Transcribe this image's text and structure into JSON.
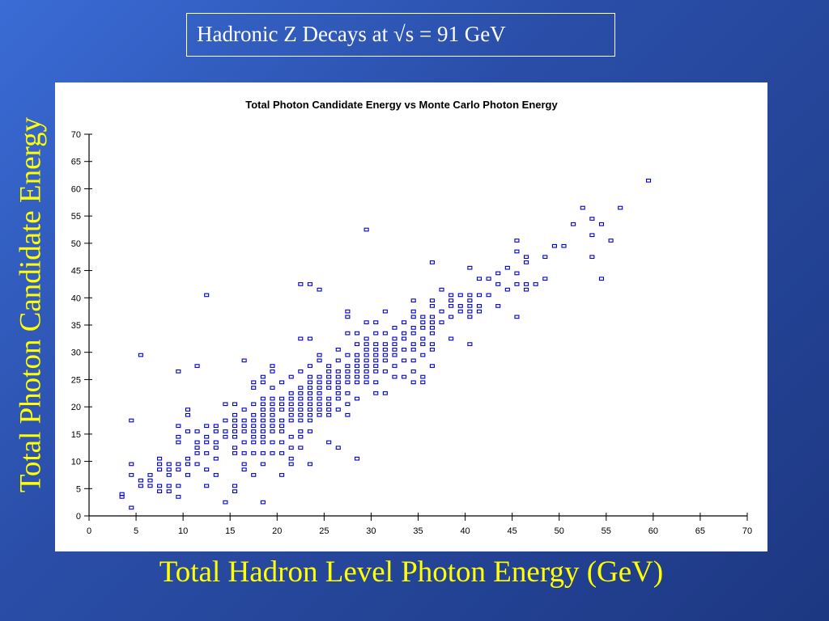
{
  "slide": {
    "title": "Hadronic Z Decays at √s = 91 GeV",
    "y_caption": "Total Photon Candidate Energy",
    "x_caption": "Total Hadron Level Photon Energy (GeV)",
    "background_color": "#2a4ea8",
    "caption_color": "#ffff00",
    "title_color": "#ffffff"
  },
  "chart_data": {
    "type": "scatter",
    "title": "Total Photon Candidate Energy vs Monte Carlo Photon Energy",
    "xlabel": "",
    "ylabel": "",
    "xlim": [
      0,
      70
    ],
    "ylim": [
      0,
      70
    ],
    "x_ticks": [
      0,
      5,
      10,
      15,
      20,
      25,
      30,
      35,
      40,
      45,
      50,
      55,
      60,
      65,
      70
    ],
    "y_ticks": [
      0,
      5,
      10,
      15,
      20,
      25,
      30,
      35,
      40,
      45,
      50,
      55,
      60,
      65,
      70
    ],
    "grid": false,
    "marker": "box",
    "marker_color": "#0000cc",
    "points": [
      [
        4.5,
        1.5
      ],
      [
        3.5,
        4
      ],
      [
        3.5,
        3.5
      ],
      [
        4.5,
        7.5
      ],
      [
        4.5,
        9.5
      ],
      [
        5.5,
        6.5
      ],
      [
        5.5,
        5.5
      ],
      [
        4.5,
        17.5
      ],
      [
        5.5,
        29.5
      ],
      [
        6.5,
        6.5
      ],
      [
        6.5,
        5.5
      ],
      [
        6.5,
        7.5
      ],
      [
        7.5,
        5.5
      ],
      [
        7.5,
        4.5
      ],
      [
        7.5,
        8.5
      ],
      [
        7.5,
        10.5
      ],
      [
        7.5,
        9.5
      ],
      [
        8.5,
        4.5
      ],
      [
        8.5,
        5.5
      ],
      [
        8.5,
        7.5
      ],
      [
        8.5,
        9.5
      ],
      [
        8.5,
        8.5
      ],
      [
        9.5,
        3.5
      ],
      [
        9.5,
        5.5
      ],
      [
        9.5,
        8.5
      ],
      [
        9.5,
        9.5
      ],
      [
        9.5,
        13.5
      ],
      [
        9.5,
        14.5
      ],
      [
        9.5,
        16.5
      ],
      [
        9.5,
        26.5
      ],
      [
        10.5,
        7.5
      ],
      [
        10.5,
        9.5
      ],
      [
        10.5,
        10.5
      ],
      [
        10.5,
        15.5
      ],
      [
        10.5,
        18.5
      ],
      [
        10.5,
        19.5
      ],
      [
        11.5,
        9.5
      ],
      [
        11.5,
        11.5
      ],
      [
        11.5,
        12.5
      ],
      [
        11.5,
        13.5
      ],
      [
        11.5,
        15.5
      ],
      [
        11.5,
        27.5
      ],
      [
        12.5,
        5.5
      ],
      [
        12.5,
        8.5
      ],
      [
        12.5,
        11.5
      ],
      [
        12.5,
        13.5
      ],
      [
        12.5,
        14.5
      ],
      [
        12.5,
        16.5
      ],
      [
        12.5,
        40.5
      ],
      [
        13.5,
        7.5
      ],
      [
        13.5,
        10.5
      ],
      [
        13.5,
        12.5
      ],
      [
        13.5,
        13.5
      ],
      [
        13.5,
        15.5
      ],
      [
        13.5,
        16.5
      ],
      [
        14.5,
        2.5
      ],
      [
        14.5,
        14.5
      ],
      [
        14.5,
        15.5
      ],
      [
        14.5,
        17.5
      ],
      [
        14.5,
        20.5
      ],
      [
        15.5,
        4.5
      ],
      [
        15.5,
        5.5
      ],
      [
        15.5,
        11.5
      ],
      [
        15.5,
        12.5
      ],
      [
        15.5,
        14.5
      ],
      [
        15.5,
        15.5
      ],
      [
        15.5,
        16.5
      ],
      [
        15.5,
        17.5
      ],
      [
        15.5,
        18.5
      ],
      [
        15.5,
        20.5
      ],
      [
        16.5,
        8.5
      ],
      [
        16.5,
        9.5
      ],
      [
        16.5,
        11.5
      ],
      [
        16.5,
        13.5
      ],
      [
        16.5,
        15.5
      ],
      [
        16.5,
        16.5
      ],
      [
        16.5,
        17.5
      ],
      [
        16.5,
        19.5
      ],
      [
        16.5,
        28.5
      ],
      [
        17.5,
        7.5
      ],
      [
        17.5,
        11.5
      ],
      [
        17.5,
        13.5
      ],
      [
        17.5,
        14.5
      ],
      [
        17.5,
        15.5
      ],
      [
        17.5,
        16.5
      ],
      [
        17.5,
        17.5
      ],
      [
        17.5,
        18.5
      ],
      [
        17.5,
        20.5
      ],
      [
        17.5,
        23.5
      ],
      [
        17.5,
        24.5
      ],
      [
        18.5,
        2.5
      ],
      [
        18.5,
        9.5
      ],
      [
        18.5,
        11.5
      ],
      [
        18.5,
        13.5
      ],
      [
        18.5,
        14.5
      ],
      [
        18.5,
        15.5
      ],
      [
        18.5,
        16.5
      ],
      [
        18.5,
        17.5
      ],
      [
        18.5,
        18.5
      ],
      [
        18.5,
        19.5
      ],
      [
        18.5,
        20.5
      ],
      [
        18.5,
        21.5
      ],
      [
        18.5,
        24.5
      ],
      [
        18.5,
        25.5
      ],
      [
        19.5,
        11.5
      ],
      [
        19.5,
        13.5
      ],
      [
        19.5,
        15.5
      ],
      [
        19.5,
        16.5
      ],
      [
        19.5,
        17.5
      ],
      [
        19.5,
        18.5
      ],
      [
        19.5,
        19.5
      ],
      [
        19.5,
        20.5
      ],
      [
        19.5,
        21.5
      ],
      [
        19.5,
        23.5
      ],
      [
        19.5,
        26.5
      ],
      [
        19.5,
        27.5
      ],
      [
        20.5,
        7.5
      ],
      [
        20.5,
        11.5
      ],
      [
        20.5,
        13.5
      ],
      [
        20.5,
        15.5
      ],
      [
        20.5,
        16.5
      ],
      [
        20.5,
        17.5
      ],
      [
        20.5,
        19.5
      ],
      [
        20.5,
        20.5
      ],
      [
        20.5,
        21.5
      ],
      [
        20.5,
        24.5
      ],
      [
        21.5,
        9.5
      ],
      [
        21.5,
        10.5
      ],
      [
        21.5,
        12.5
      ],
      [
        21.5,
        14.5
      ],
      [
        21.5,
        17.5
      ],
      [
        21.5,
        18.5
      ],
      [
        21.5,
        19.5
      ],
      [
        21.5,
        20.5
      ],
      [
        21.5,
        21.5
      ],
      [
        21.5,
        22.5
      ],
      [
        21.5,
        25.5
      ],
      [
        22.5,
        12.5
      ],
      [
        22.5,
        14.5
      ],
      [
        22.5,
        15.5
      ],
      [
        22.5,
        17.5
      ],
      [
        22.5,
        18.5
      ],
      [
        22.5,
        19.5
      ],
      [
        22.5,
        20.5
      ],
      [
        22.5,
        21.5
      ],
      [
        22.5,
        22.5
      ],
      [
        22.5,
        23.5
      ],
      [
        22.5,
        26.5
      ],
      [
        22.5,
        32.5
      ],
      [
        22.5,
        42.5
      ],
      [
        23.5,
        9.5
      ],
      [
        23.5,
        15.5
      ],
      [
        23.5,
        17.5
      ],
      [
        23.5,
        18.5
      ],
      [
        23.5,
        19.5
      ],
      [
        23.5,
        20.5
      ],
      [
        23.5,
        21.5
      ],
      [
        23.5,
        22.5
      ],
      [
        23.5,
        23.5
      ],
      [
        23.5,
        24.5
      ],
      [
        23.5,
        25.5
      ],
      [
        23.5,
        27.5
      ],
      [
        23.5,
        32.5
      ],
      [
        23.5,
        42.5
      ],
      [
        24.5,
        18.5
      ],
      [
        24.5,
        19.5
      ],
      [
        24.5,
        20.5
      ],
      [
        24.5,
        21.5
      ],
      [
        24.5,
        22.5
      ],
      [
        24.5,
        23.5
      ],
      [
        24.5,
        24.5
      ],
      [
        24.5,
        25.5
      ],
      [
        24.5,
        28.5
      ],
      [
        24.5,
        29.5
      ],
      [
        24.5,
        41.5
      ],
      [
        25.5,
        13.5
      ],
      [
        25.5,
        18.5
      ],
      [
        25.5,
        19.5
      ],
      [
        25.5,
        20.5
      ],
      [
        25.5,
        21.5
      ],
      [
        25.5,
        23.5
      ],
      [
        25.5,
        24.5
      ],
      [
        25.5,
        25.5
      ],
      [
        25.5,
        26.5
      ],
      [
        25.5,
        27.5
      ],
      [
        26.5,
        12.5
      ],
      [
        26.5,
        19.5
      ],
      [
        26.5,
        21.5
      ],
      [
        26.5,
        22.5
      ],
      [
        26.5,
        23.5
      ],
      [
        26.5,
        24.5
      ],
      [
        26.5,
        25.5
      ],
      [
        26.5,
        26.5
      ],
      [
        26.5,
        28.5
      ],
      [
        26.5,
        30.5
      ],
      [
        27.5,
        18.5
      ],
      [
        27.5,
        20.5
      ],
      [
        27.5,
        22.5
      ],
      [
        27.5,
        24.5
      ],
      [
        27.5,
        25.5
      ],
      [
        27.5,
        26.5
      ],
      [
        27.5,
        27.5
      ],
      [
        27.5,
        29.5
      ],
      [
        27.5,
        33.5
      ],
      [
        27.5,
        36.5
      ],
      [
        27.5,
        37.5
      ],
      [
        28.5,
        10.5
      ],
      [
        28.5,
        21.5
      ],
      [
        28.5,
        24.5
      ],
      [
        28.5,
        25.5
      ],
      [
        28.5,
        26.5
      ],
      [
        28.5,
        27.5
      ],
      [
        28.5,
        28.5
      ],
      [
        28.5,
        29.5
      ],
      [
        28.5,
        31.5
      ],
      [
        28.5,
        33.5
      ],
      [
        29.5,
        24.5
      ],
      [
        29.5,
        25.5
      ],
      [
        29.5,
        26.5
      ],
      [
        29.5,
        27.5
      ],
      [
        29.5,
        28.5
      ],
      [
        29.5,
        29.5
      ],
      [
        29.5,
        30.5
      ],
      [
        29.5,
        31.5
      ],
      [
        29.5,
        32.5
      ],
      [
        29.5,
        35.5
      ],
      [
        29.5,
        52.5
      ],
      [
        30.5,
        22.5
      ],
      [
        30.5,
        24.5
      ],
      [
        30.5,
        26.5
      ],
      [
        30.5,
        27.5
      ],
      [
        30.5,
        28.5
      ],
      [
        30.5,
        29.5
      ],
      [
        30.5,
        30.5
      ],
      [
        30.5,
        31.5
      ],
      [
        30.5,
        33.5
      ],
      [
        30.5,
        35.5
      ],
      [
        31.5,
        22.5
      ],
      [
        31.5,
        26.5
      ],
      [
        31.5,
        28.5
      ],
      [
        31.5,
        29.5
      ],
      [
        31.5,
        30.5
      ],
      [
        31.5,
        31.5
      ],
      [
        31.5,
        33.5
      ],
      [
        31.5,
        37.5
      ],
      [
        32.5,
        25.5
      ],
      [
        32.5,
        27.5
      ],
      [
        32.5,
        29.5
      ],
      [
        32.5,
        30.5
      ],
      [
        32.5,
        31.5
      ],
      [
        32.5,
        32.5
      ],
      [
        32.5,
        34.5
      ],
      [
        33.5,
        25.5
      ],
      [
        33.5,
        28.5
      ],
      [
        33.5,
        30.5
      ],
      [
        33.5,
        32.5
      ],
      [
        33.5,
        33.5
      ],
      [
        33.5,
        35.5
      ],
      [
        34.5,
        24.5
      ],
      [
        34.5,
        26.5
      ],
      [
        34.5,
        28.5
      ],
      [
        34.5,
        30.5
      ],
      [
        34.5,
        31.5
      ],
      [
        34.5,
        33.5
      ],
      [
        34.5,
        34.5
      ],
      [
        34.5,
        36.5
      ],
      [
        34.5,
        37.5
      ],
      [
        34.5,
        39.5
      ],
      [
        35.5,
        24.5
      ],
      [
        35.5,
        25.5
      ],
      [
        35.5,
        29.5
      ],
      [
        35.5,
        31.5
      ],
      [
        35.5,
        32.5
      ],
      [
        35.5,
        34.5
      ],
      [
        35.5,
        35.5
      ],
      [
        35.5,
        36.5
      ],
      [
        36.5,
        27.5
      ],
      [
        36.5,
        30.5
      ],
      [
        36.5,
        31.5
      ],
      [
        36.5,
        33.5
      ],
      [
        36.5,
        34.5
      ],
      [
        36.5,
        35.5
      ],
      [
        36.5,
        36.5
      ],
      [
        36.5,
        38.5
      ],
      [
        36.5,
        39.5
      ],
      [
        36.5,
        46.5
      ],
      [
        37.5,
        35.5
      ],
      [
        37.5,
        37.5
      ],
      [
        37.5,
        41.5
      ],
      [
        38.5,
        32.5
      ],
      [
        38.5,
        36.5
      ],
      [
        38.5,
        38.5
      ],
      [
        38.5,
        39.5
      ],
      [
        38.5,
        40.5
      ],
      [
        39.5,
        37.5
      ],
      [
        39.5,
        38.5
      ],
      [
        39.5,
        40.5
      ],
      [
        40.5,
        31.5
      ],
      [
        40.5,
        36.5
      ],
      [
        40.5,
        37.5
      ],
      [
        40.5,
        38.5
      ],
      [
        40.5,
        39.5
      ],
      [
        40.5,
        40.5
      ],
      [
        40.5,
        45.5
      ],
      [
        41.5,
        37.5
      ],
      [
        41.5,
        38.5
      ],
      [
        41.5,
        40.5
      ],
      [
        41.5,
        43.5
      ],
      [
        42.5,
        40.5
      ],
      [
        42.5,
        43.5
      ],
      [
        43.5,
        38.5
      ],
      [
        43.5,
        42.5
      ],
      [
        43.5,
        44.5
      ],
      [
        44.5,
        41.5
      ],
      [
        44.5,
        45.5
      ],
      [
        45.5,
        36.5
      ],
      [
        45.5,
        42.5
      ],
      [
        45.5,
        44.5
      ],
      [
        45.5,
        48.5
      ],
      [
        45.5,
        50.5
      ],
      [
        46.5,
        41.5
      ],
      [
        46.5,
        42.5
      ],
      [
        46.5,
        46.5
      ],
      [
        46.5,
        47.5
      ],
      [
        47.5,
        42.5
      ],
      [
        48.5,
        43.5
      ],
      [
        48.5,
        47.5
      ],
      [
        49.5,
        49.5
      ],
      [
        50.5,
        49.5
      ],
      [
        51.5,
        53.5
      ],
      [
        52.5,
        56.5
      ],
      [
        53.5,
        47.5
      ],
      [
        53.5,
        51.5
      ],
      [
        53.5,
        54.5
      ],
      [
        54.5,
        43.5
      ],
      [
        54.5,
        53.5
      ],
      [
        55.5,
        50.5
      ],
      [
        56.5,
        56.5
      ],
      [
        59.5,
        61.5
      ]
    ]
  }
}
